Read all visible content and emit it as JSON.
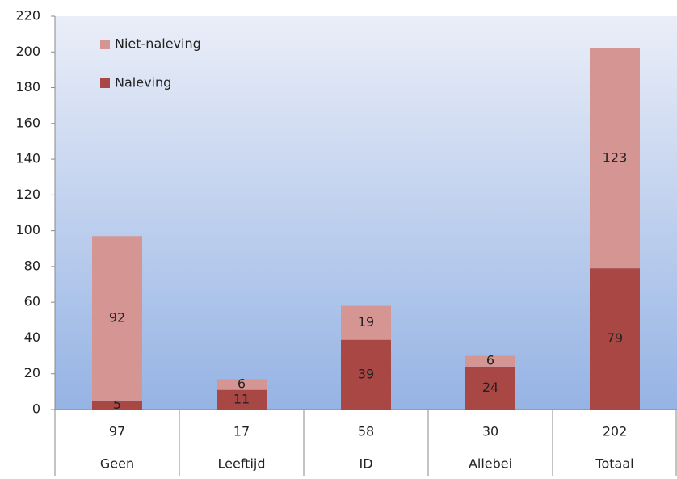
{
  "chart_data": {
    "type": "stacked_bar",
    "categories": [
      "Geen",
      "Leeftijd",
      "ID",
      "Allebei",
      "Totaal"
    ],
    "totals": [
      97,
      17,
      58,
      30,
      202
    ],
    "series": [
      {
        "name": "Naleving",
        "color": "#a94745",
        "values": [
          5,
          11,
          39,
          24,
          79
        ]
      },
      {
        "name": "Niet-naleving",
        "color": "#d59593",
        "values": [
          92,
          6,
          19,
          6,
          123
        ]
      }
    ],
    "ylim": [
      0,
      220
    ],
    "yticks": [
      0,
      20,
      40,
      60,
      80,
      100,
      120,
      140,
      160,
      180,
      200,
      220
    ],
    "legend": "upper left",
    "data_labels": true
  }
}
